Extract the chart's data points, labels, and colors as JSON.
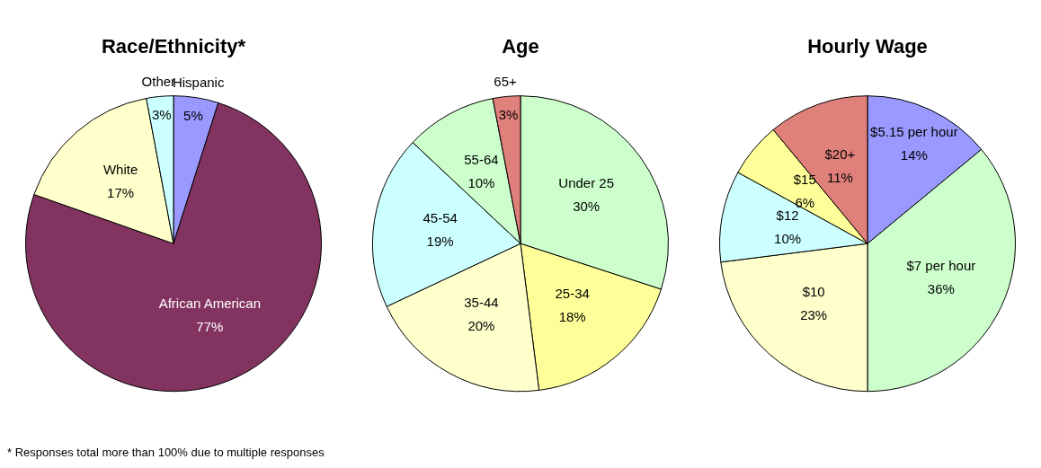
{
  "chart_data": [
    {
      "type": "pie",
      "title": "Race/Ethnicity*",
      "categories": [
        "Hispanic",
        "African American",
        "White",
        "Other"
      ],
      "values": [
        5,
        77,
        17,
        3
      ],
      "colors": [
        "#9999ff",
        "#833360",
        "#ffffcc",
        "#ccffff"
      ],
      "value_labels": [
        "5%",
        "77%",
        "17%",
        "3%"
      ],
      "legend": false,
      "annotations": [
        "* Responses total more than 100% due to multiple responses"
      ]
    },
    {
      "type": "pie",
      "title": "Age",
      "categories": [
        "Under 25",
        "25-34",
        "35-44",
        "45-54",
        "55-64",
        "65+"
      ],
      "values": [
        30,
        18,
        20,
        19,
        10,
        3
      ],
      "colors": [
        "#ccffcc",
        "#ffff99",
        "#ffffcc",
        "#ccffff",
        "#ccffcc",
        "#e0807a"
      ],
      "value_labels": [
        "30%",
        "18%",
        "20%",
        "19%",
        "10%",
        "3%"
      ],
      "legend": false
    },
    {
      "type": "pie",
      "title": "Hourly Wage",
      "categories": [
        "$5.15 per hour",
        "$7 per hour",
        "$10",
        "$12",
        "$15",
        "$20+"
      ],
      "values": [
        14,
        36,
        23,
        10,
        6,
        11
      ],
      "colors": [
        "#9999ff",
        "#ccffcc",
        "#ffffcc",
        "#ccffff",
        "#ffff99",
        "#e0807a"
      ],
      "value_labels": [
        "14%",
        "36%",
        "23%",
        "10%",
        "6%",
        "11%"
      ],
      "legend": false
    }
  ]
}
